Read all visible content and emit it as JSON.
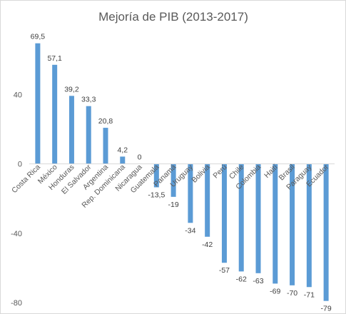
{
  "chart_data": {
    "type": "bar",
    "title": "Mejoría de PIB (2013-2017)",
    "categories": [
      "Costa Rica",
      "México",
      "Honduras",
      "El Salvador",
      "Argentina",
      "Rep. Dominicana",
      "Nicaragua",
      "Guatemala",
      "Panamá",
      "Uruguay",
      "Bolivia",
      "Perú",
      "Chile",
      "Colombia",
      "Haití",
      "Brasil",
      "Paraguay",
      "Ecuador"
    ],
    "values": [
      69.5,
      57.1,
      39.2,
      33.3,
      20.8,
      4.2,
      0,
      -13.5,
      -19,
      -34,
      -42,
      -57,
      -62,
      -63,
      -69,
      -70,
      -71,
      -79
    ],
    "value_labels": [
      "69,5",
      "57,1",
      "39,2",
      "33,3",
      "20,8",
      "4,2",
      "0",
      "-13,5",
      "-19",
      "-34",
      "-42",
      "-57",
      "-62",
      "-63",
      "-69",
      "-70",
      "-71",
      "-79"
    ],
    "yticks": [
      40,
      0,
      -40,
      -80
    ],
    "ytick_labels": [
      "40",
      "0",
      "-40",
      "-80"
    ],
    "ylim": [
      -82,
      78
    ],
    "xlabel": "",
    "ylabel": "",
    "grid": false,
    "legend": "none",
    "bar_color": "#5b9bd5"
  }
}
